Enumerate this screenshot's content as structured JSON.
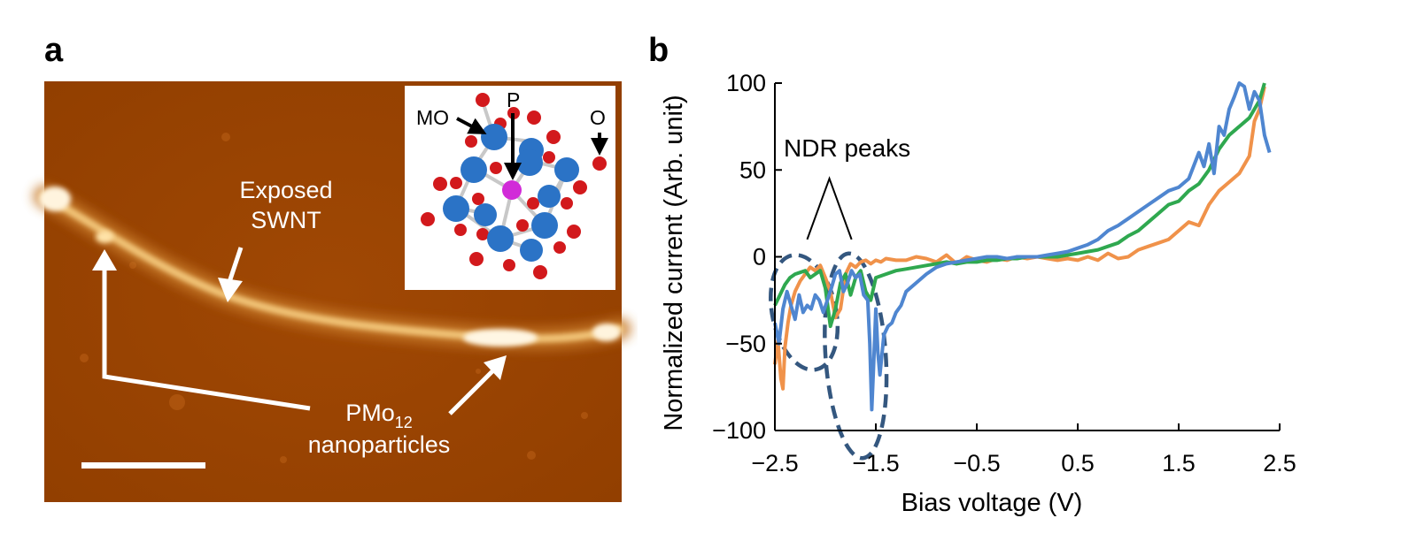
{
  "panel_a": {
    "letter": "a",
    "label_exposed_line1": "Exposed",
    "label_exposed_line2": "SWNT",
    "label_np_base": "PMo",
    "label_np_sub": "12",
    "label_np_line2": "nanoparticles",
    "inset": {
      "label_mo": "MO",
      "label_p": "P",
      "label_o": "O"
    },
    "colors": {
      "afm_bg": "#9c4400",
      "tube": "#f2c578",
      "mo_atom": "#2b73c6",
      "o_atom": "#d2191c",
      "p_atom": "#d12bd8"
    }
  },
  "panel_b": {
    "letter": "b"
  },
  "chart_data": {
    "type": "line",
    "xlabel": "Bias voltage (V)",
    "ylabel": "Normalized current (Arb. unit)",
    "xlim": [
      -2.5,
      2.5
    ],
    "ylim": [
      -100,
      100
    ],
    "xticks": [
      -2.5,
      -1.5,
      -0.5,
      0.5,
      1.5,
      2.5
    ],
    "yticks": [
      -100,
      -50,
      0,
      50,
      100
    ],
    "xtick_labels": [
      "−2.5",
      "−1.5",
      "−0.5",
      "0.5",
      "1.5",
      "2.5"
    ],
    "ytick_labels": [
      "−100",
      "−50",
      "0",
      "50",
      "100"
    ],
    "annotation": "NDR peaks",
    "series": [
      {
        "name": "orange",
        "color": "#f0924a",
        "x": [
          -2.5,
          -2.47,
          -2.44,
          -2.42,
          -2.4,
          -2.37,
          -2.34,
          -2.3,
          -2.25,
          -2.2,
          -2.15,
          -2.1,
          -2.05,
          -2.0,
          -1.95,
          -1.9,
          -1.85,
          -1.8,
          -1.75,
          -1.7,
          -1.65,
          -1.6,
          -1.55,
          -1.5,
          -1.45,
          -1.4,
          -1.3,
          -1.2,
          -1.1,
          -1.0,
          -0.9,
          -0.8,
          -0.7,
          -0.6,
          -0.5,
          -0.4,
          -0.3,
          -0.2,
          -0.1,
          0.0,
          0.1,
          0.2,
          0.3,
          0.4,
          0.5,
          0.6,
          0.7,
          0.8,
          0.9,
          1.0,
          1.1,
          1.2,
          1.3,
          1.4,
          1.5,
          1.6,
          1.7,
          1.8,
          1.9,
          2.0,
          2.1,
          2.2,
          2.25,
          2.3,
          2.35
        ],
        "y": [
          -62,
          -48,
          -70,
          -76,
          -52,
          -38,
          -28,
          -20,
          -14,
          -10,
          -6,
          -8,
          -5,
          -12,
          -20,
          -35,
          -30,
          -10,
          -4,
          -6,
          -3,
          -2,
          -4,
          -2,
          -3,
          -1,
          -2,
          -2,
          0,
          -1,
          -3,
          1,
          -4,
          0,
          -2,
          -3,
          -1,
          -2,
          0,
          -1,
          0,
          -1,
          -2,
          -1,
          -2,
          0,
          -2,
          2,
          -1,
          0,
          4,
          6,
          8,
          10,
          15,
          20,
          18,
          30,
          38,
          43,
          48,
          58,
          78,
          85,
          98
        ]
      },
      {
        "name": "green",
        "color": "#2fa84f",
        "x": [
          -2.5,
          -2.45,
          -2.4,
          -2.35,
          -2.3,
          -2.25,
          -2.2,
          -2.15,
          -2.1,
          -2.05,
          -2.0,
          -1.95,
          -1.9,
          -1.85,
          -1.8,
          -1.75,
          -1.7,
          -1.65,
          -1.6,
          -1.55,
          -1.5,
          -1.4,
          -1.3,
          -1.2,
          -1.1,
          -1.0,
          -0.9,
          -0.8,
          -0.7,
          -0.6,
          -0.5,
          -0.4,
          -0.3,
          -0.2,
          -0.1,
          0.0,
          0.1,
          0.2,
          0.3,
          0.4,
          0.5,
          0.6,
          0.7,
          0.8,
          0.9,
          1.0,
          1.1,
          1.2,
          1.3,
          1.4,
          1.5,
          1.6,
          1.7,
          1.8,
          1.9,
          2.0,
          2.1,
          2.2,
          2.3,
          2.35
        ],
        "y": [
          -28,
          -22,
          -16,
          -12,
          -10,
          -9,
          -8,
          -12,
          -10,
          -8,
          -18,
          -40,
          -30,
          -15,
          -10,
          -22,
          -12,
          -8,
          -20,
          -25,
          -12,
          -10,
          -8,
          -7,
          -6,
          -5,
          -4,
          -3,
          -4,
          -3,
          -3,
          -2,
          -2,
          -1,
          -1,
          0,
          0,
          0,
          0,
          1,
          2,
          3,
          4,
          6,
          8,
          12,
          15,
          20,
          25,
          30,
          32,
          38,
          42,
          50,
          62,
          70,
          75,
          80,
          90,
          100
        ]
      },
      {
        "name": "blue",
        "color": "#4f86d0",
        "x": [
          -2.5,
          -2.46,
          -2.42,
          -2.38,
          -2.34,
          -2.3,
          -2.26,
          -2.22,
          -2.18,
          -2.14,
          -2.1,
          -2.06,
          -2.02,
          -1.98,
          -1.94,
          -1.9,
          -1.86,
          -1.82,
          -1.78,
          -1.74,
          -1.7,
          -1.66,
          -1.62,
          -1.58,
          -1.56,
          -1.54,
          -1.52,
          -1.5,
          -1.48,
          -1.46,
          -1.42,
          -1.38,
          -1.34,
          -1.3,
          -1.25,
          -1.2,
          -1.1,
          -1.0,
          -0.9,
          -0.8,
          -0.7,
          -0.6,
          -0.5,
          -0.4,
          -0.3,
          -0.2,
          -0.1,
          0.0,
          0.1,
          0.2,
          0.3,
          0.4,
          0.5,
          0.6,
          0.7,
          0.8,
          0.9,
          1.0,
          1.1,
          1.2,
          1.3,
          1.4,
          1.5,
          1.6,
          1.7,
          1.75,
          1.8,
          1.85,
          1.9,
          1.95,
          2.0,
          2.05,
          2.1,
          2.15,
          2.2,
          2.25,
          2.3,
          2.35,
          2.4
        ],
        "y": [
          -38,
          -50,
          -30,
          -20,
          -28,
          -36,
          -22,
          -32,
          -28,
          -30,
          -22,
          -25,
          -32,
          -25,
          -18,
          -10,
          -8,
          -20,
          -15,
          -8,
          -12,
          -10,
          -22,
          -25,
          -50,
          -88,
          -60,
          -30,
          -55,
          -68,
          -45,
          -40,
          -38,
          -32,
          -28,
          -20,
          -15,
          -10,
          -6,
          -4,
          -3,
          -2,
          -1,
          0,
          0,
          -1,
          0,
          0,
          0,
          1,
          2,
          3,
          5,
          7,
          10,
          15,
          18,
          22,
          26,
          30,
          34,
          38,
          40,
          45,
          60,
          52,
          65,
          48,
          75,
          70,
          85,
          92,
          100,
          98,
          85,
          95,
          90,
          70,
          60
        ]
      }
    ],
    "ellipses_note": "two dashed ellipses mark NDR peak regions near -2.25 V and -1.65 V"
  }
}
